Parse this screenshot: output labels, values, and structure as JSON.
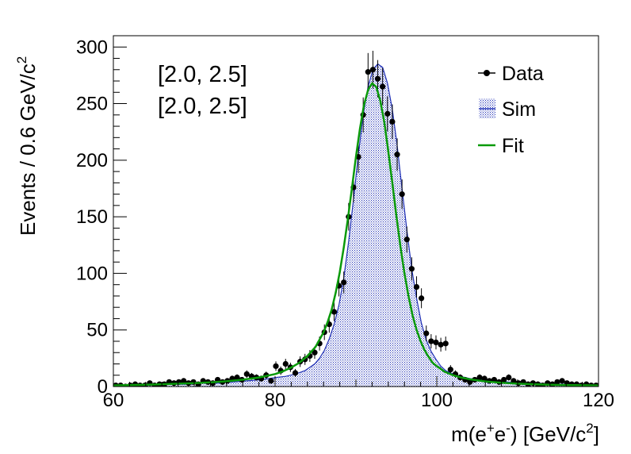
{
  "chart_data": {
    "type": "line",
    "ylabel": "Events / 0.6 GeV/c",
    "ylabel_sup": "2",
    "xlabel_parts": [
      "m(e",
      "+",
      "e",
      "-",
      ") [GeV/c",
      "2",
      "]"
    ],
    "annotations": [
      "[2.0, 2.5]",
      "[2.0, 2.5]"
    ],
    "xlim": [
      60,
      120
    ],
    "ylim": [
      0,
      310
    ],
    "xticks": [
      60,
      80,
      100,
      120
    ],
    "yticks": [
      0,
      50,
      100,
      150,
      200,
      250,
      300
    ],
    "grid": false,
    "legend_position": "top-right",
    "legend": [
      {
        "label": "Data",
        "style": "marker"
      },
      {
        "label": "Sim",
        "style": "hatched-fill"
      },
      {
        "label": "Fit",
        "style": "line"
      }
    ],
    "colors": {
      "data": "#000000",
      "sim": "#1f2fb5",
      "fit": "#0a9a0a"
    },
    "series": [
      {
        "name": "Data",
        "x": [
          60.3,
          60.9,
          61.5,
          62.1,
          62.7,
          63.3,
          63.9,
          64.5,
          65.1,
          65.7,
          66.3,
          66.9,
          67.5,
          68.1,
          68.7,
          69.3,
          69.9,
          70.5,
          71.1,
          71.7,
          72.3,
          72.9,
          73.5,
          74.1,
          74.7,
          75.3,
          75.9,
          76.5,
          77.1,
          77.7,
          78.3,
          78.9,
          79.5,
          80.1,
          80.7,
          81.3,
          81.9,
          82.5,
          83.1,
          83.7,
          84.3,
          84.9,
          85.5,
          86.1,
          86.7,
          87.3,
          87.9,
          88.5,
          89.1,
          89.7,
          90.3,
          90.9,
          91.5,
          92.1,
          92.7,
          93.3,
          93.9,
          94.5,
          95.1,
          95.7,
          96.3,
          96.9,
          97.5,
          98.1,
          98.7,
          99.3,
          99.9,
          100.5,
          101.1,
          101.7,
          102.3,
          102.9,
          103.5,
          104.1,
          104.7,
          105.3,
          105.9,
          106.5,
          107.1,
          107.7,
          108.3,
          108.9,
          109.5,
          110.1,
          110.7,
          111.3,
          111.9,
          112.5,
          113.1,
          113.7,
          114.3,
          114.9,
          115.5,
          116.1,
          116.7,
          117.3,
          117.9,
          118.5,
          119.1,
          119.7
        ],
        "y": [
          1,
          1,
          0,
          1,
          2,
          1,
          1,
          3,
          1,
          2,
          2,
          4,
          3,
          4,
          5,
          3,
          4,
          2,
          5,
          4,
          3,
          6,
          4,
          5,
          7,
          8,
          6,
          11,
          9,
          8,
          7,
          10,
          5,
          18,
          14,
          20,
          17,
          12,
          22,
          24,
          27,
          30,
          38,
          48,
          55,
          66,
          89,
          92,
          150,
          176,
          203,
          240,
          278,
          280,
          272,
          265,
          241,
          234,
          205,
          170,
          130,
          104,
          88,
          78,
          47,
          40,
          39,
          37,
          38,
          15,
          11,
          8,
          6,
          4,
          6,
          8,
          7,
          5,
          6,
          4,
          6,
          8,
          5,
          3,
          4,
          2,
          3,
          2,
          1,
          3,
          2,
          4,
          5,
          3,
          2,
          2,
          1,
          2,
          1,
          1
        ],
        "yerr": [
          1.0,
          1.0,
          0.0,
          1.0,
          1.4,
          1.0,
          1.0,
          1.7,
          1.0,
          1.4,
          1.4,
          2.0,
          1.7,
          2.0,
          2.2,
          1.7,
          2.0,
          1.4,
          2.2,
          2.0,
          1.7,
          2.4,
          2.0,
          2.2,
          2.6,
          2.8,
          2.4,
          3.3,
          3.0,
          2.8,
          2.6,
          3.2,
          2.2,
          4.2,
          3.7,
          4.5,
          4.1,
          3.5,
          4.7,
          4.9,
          5.2,
          5.5,
          6.2,
          6.9,
          7.4,
          8.1,
          9.4,
          9.6,
          12.2,
          13.3,
          14.2,
          15.5,
          16.7,
          16.7,
          16.5,
          16.3,
          15.5,
          15.3,
          14.3,
          13.0,
          11.4,
          10.2,
          9.4,
          8.8,
          6.9,
          6.3,
          6.2,
          6.1,
          6.2,
          3.9,
          3.3,
          2.8,
          2.4,
          2.0,
          2.4,
          2.8,
          2.6,
          2.2,
          2.4,
          2.0,
          2.4,
          2.8,
          2.2,
          1.7,
          2.0,
          1.4,
          1.7,
          1.4,
          1.0,
          1.7,
          1.4,
          2.0,
          2.2,
          1.7,
          1.4,
          1.4,
          1.0,
          1.4,
          1.0,
          1.0
        ]
      },
      {
        "name": "Sim",
        "x": [
          60.3,
          62.1,
          63.9,
          65.7,
          67.5,
          69.3,
          71.1,
          72.9,
          74.7,
          76.5,
          78.3,
          80.1,
          81.3,
          82.5,
          83.7,
          84.9,
          85.5,
          86.1,
          86.7,
          87.3,
          87.9,
          88.5,
          89.1,
          89.7,
          90.3,
          90.9,
          91.5,
          92.1,
          92.7,
          93.3,
          93.9,
          94.5,
          95.1,
          95.7,
          96.3,
          96.9,
          97.5,
          98.1,
          98.7,
          99.3,
          99.9,
          100.5,
          101.1,
          101.7,
          102.9,
          104.1,
          105.3,
          107.1,
          108.9,
          110.7,
          112.5,
          114.3,
          116.1,
          117.9,
          119.7
        ],
        "y": [
          1,
          1,
          1,
          2,
          2,
          2,
          3,
          3,
          4,
          5,
          6,
          8,
          9,
          11,
          14,
          20,
          25,
          32,
          42,
          55,
          72,
          96,
          128,
          165,
          205,
          240,
          265,
          280,
          285,
          282,
          268,
          245,
          213,
          175,
          138,
          104,
          78,
          56,
          41,
          31,
          24,
          18,
          14,
          12,
          9,
          7,
          6,
          5,
          4,
          3,
          3,
          2,
          2,
          1,
          1
        ]
      },
      {
        "name": "Fit",
        "x": [
          60,
          62,
          64,
          66,
          68,
          70,
          72,
          74,
          76,
          78,
          80,
          81,
          82,
          83,
          84,
          85,
          86,
          86.5,
          87,
          87.5,
          88,
          88.5,
          89,
          89.5,
          90,
          90.5,
          91,
          91.5,
          92,
          92.5,
          93,
          93.5,
          94,
          94.5,
          95,
          95.5,
          96,
          96.5,
          97,
          97.5,
          98,
          98.5,
          99,
          99.5,
          100,
          101,
          102,
          103,
          104,
          106,
          108,
          110,
          112,
          114,
          116,
          118,
          120
        ],
        "y": [
          1,
          1.3,
          1.6,
          2,
          2.5,
          3,
          3.7,
          4.6,
          6,
          8,
          11,
          13.5,
          16.8,
          21,
          27,
          35,
          48,
          57,
          68,
          83,
          101,
          123,
          148,
          175,
          203,
          228,
          249,
          262,
          268,
          265,
          253,
          234,
          208,
          180,
          151,
          124,
          100,
          80,
          63,
          50,
          40,
          32,
          26,
          21,
          18,
          13,
          10,
          8,
          6.5,
          4.5,
          3.3,
          2.5,
          2,
          1.6,
          1.3,
          1.1,
          1
        ]
      }
    ]
  }
}
